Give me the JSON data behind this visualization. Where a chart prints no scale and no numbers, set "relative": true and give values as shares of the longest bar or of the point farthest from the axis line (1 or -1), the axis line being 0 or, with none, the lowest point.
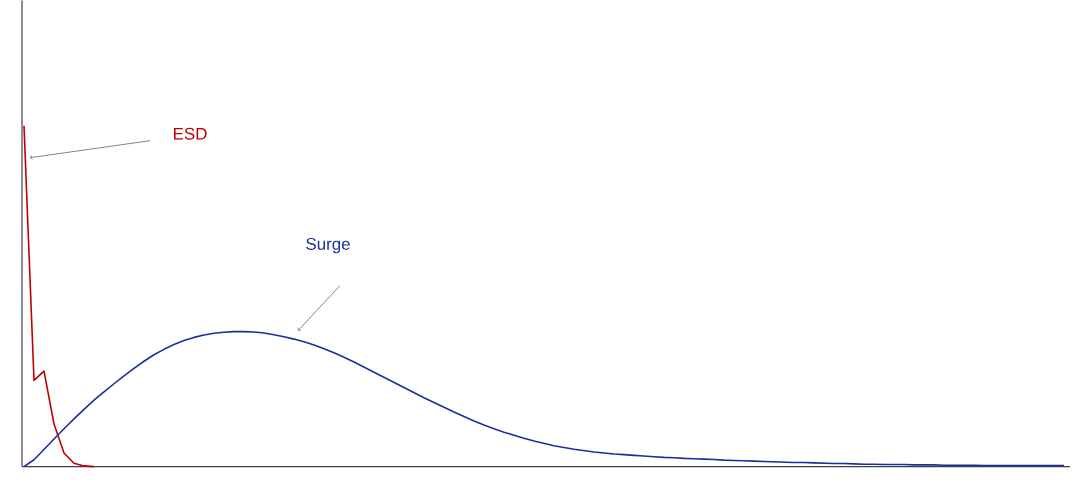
{
  "chart_data": {
    "type": "line",
    "relative": true,
    "categories": [
      null,
      null,
      null,
      null,
      null,
      null,
      null,
      null,
      null,
      null,
      null,
      null,
      null,
      null,
      null,
      null,
      null,
      null,
      null,
      null,
      null,
      null,
      null,
      null,
      null,
      null,
      null,
      null,
      null,
      null,
      null,
      null,
      null,
      null,
      null,
      null,
      null,
      null,
      null,
      null,
      null,
      null,
      null,
      null,
      null,
      null,
      null,
      null,
      null,
      null,
      null,
      null,
      null,
      null,
      null,
      null,
      null,
      null,
      null,
      null,
      null,
      null,
      null,
      null,
      null,
      null,
      null,
      null,
      null,
      null,
      null,
      null,
      null,
      null,
      null,
      null,
      null,
      null,
      null,
      null,
      null,
      null,
      null,
      null,
      null,
      null,
      null,
      null,
      null,
      null,
      null,
      null,
      null,
      null,
      null,
      null,
      null,
      null,
      null,
      null,
      null,
      null,
      null,
      null,
      null
    ],
    "series": [
      {
        "name": "ESD",
        "color": "#c00000",
        "values": [
          1.0,
          0.253,
          0.28,
          0.125,
          0.04,
          0.01,
          0.002,
          0,
          null,
          null,
          null,
          null,
          null,
          null,
          null,
          null,
          null,
          null,
          null,
          null,
          null,
          null,
          null,
          null,
          null,
          null,
          null,
          null,
          null,
          null,
          null,
          null,
          null,
          null,
          null,
          null,
          null,
          null,
          null,
          null,
          null,
          null,
          null,
          null,
          null,
          null,
          null,
          null,
          null,
          null,
          null,
          null,
          null,
          null,
          null,
          null,
          null,
          null,
          null,
          null,
          null,
          null,
          null,
          null,
          null,
          null,
          null,
          null,
          null,
          null,
          null,
          null,
          null,
          null,
          null,
          null,
          null,
          null,
          null,
          null,
          null,
          null,
          null,
          null,
          null,
          null,
          null,
          null,
          null,
          null,
          null,
          null,
          null,
          null,
          null,
          null,
          null,
          null,
          null,
          null,
          null,
          null,
          null,
          null,
          null
        ]
      },
      {
        "name": "Surge",
        "color": "#1a2f9e",
        "values": [
          0,
          0.02,
          0.05,
          0.081,
          0.111,
          0.14,
          0.168,
          0.195,
          0.219,
          0.243,
          0.266,
          0.288,
          0.309,
          0.328,
          0.344,
          0.358,
          0.37,
          0.379,
          0.386,
          0.391,
          0.394,
          0.396,
          0.396,
          0.395,
          0.392,
          0.387,
          0.381,
          0.374,
          0.366,
          0.357,
          0.346,
          0.334,
          0.321,
          0.307,
          0.292,
          0.277,
          0.262,
          0.247,
          0.232,
          0.217,
          0.202,
          0.188,
          0.174,
          0.16,
          0.147,
          0.134,
          0.122,
          0.111,
          0.101,
          0.092,
          0.083,
          0.075,
          0.068,
          0.061,
          0.056,
          0.051,
          0.047,
          0.043,
          0.04,
          0.037,
          0.035,
          0.033,
          0.031,
          0.029,
          0.027,
          0.026,
          0.024,
          0.023,
          0.022,
          0.021,
          0.019,
          0.018,
          0.017,
          0.016,
          0.015,
          0.014,
          0.013,
          0.012,
          0.012,
          0.011,
          0.01,
          0.009,
          0.009,
          0.008,
          0.007,
          0.007,
          0.006,
          0.006,
          0.006,
          0.005,
          0.005,
          0.005,
          0.004,
          0.004,
          0.004,
          0.004,
          0.003,
          0.003,
          0.003,
          0.003,
          0.003,
          0.003,
          0.003,
          0.003,
          0.003
        ]
      }
    ]
  }
}
